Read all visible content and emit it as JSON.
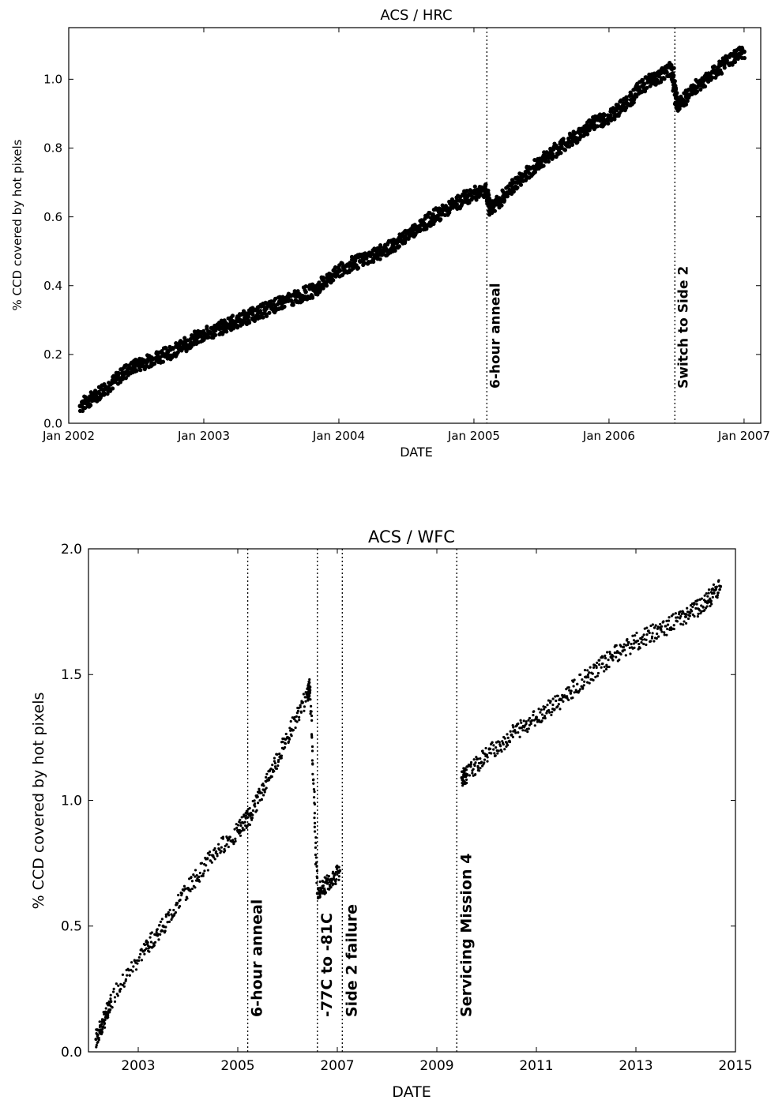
{
  "chart_data": [
    {
      "type": "scatter",
      "title": "ACS / HRC",
      "xlabel": "DATE",
      "ylabel": "% CCD covered by hot pixels",
      "xlim": [
        "2002-01-01",
        "2007-02-15"
      ],
      "ylim": [
        0.0,
        1.15
      ],
      "xtick_labels": [
        "Jan 2002",
        "Jan 2003",
        "Jan 2004",
        "Jan 2005",
        "Jan 2006",
        "Jan 2007"
      ],
      "xticks": [
        "2002-01-01",
        "2003-01-01",
        "2004-01-01",
        "2005-01-01",
        "2006-01-01",
        "2007-01-01"
      ],
      "ytick_labels": [
        "0.0",
        "0.2",
        "0.4",
        "0.6",
        "0.8",
        "1.0"
      ],
      "yticks": [
        0.0,
        0.2,
        0.4,
        0.6,
        0.8,
        1.0
      ],
      "grid": false,
      "marker_color": "#000000",
      "events": [
        {
          "date": "2005-02-05",
          "label": "6-hour anneal"
        },
        {
          "date": "2006-06-28",
          "label": "Switch to Side 2"
        }
      ],
      "series": [
        {
          "x": [
            "2002-02-01",
            "2002-03-15",
            "2002-05-01",
            "2002-06-15",
            "2002-08-01",
            "2002-09-15",
            "2002-11-01",
            "2002-12-15",
            "2003-02-01",
            "2003-03-15",
            "2003-05-01",
            "2003-06-15",
            "2003-08-01",
            "2003-09-15",
            "2003-11-01",
            "2003-12-15",
            "2004-02-01",
            "2004-03-15",
            "2004-05-01",
            "2004-06-15",
            "2004-08-01",
            "2004-09-15",
            "2004-11-01",
            "2004-12-15",
            "2005-02-01",
            "2005-02-15",
            "2005-04-01",
            "2005-05-15",
            "2005-07-01",
            "2005-08-15",
            "2005-10-01",
            "2005-11-15",
            "2006-01-01",
            "2006-02-15",
            "2006-04-01",
            "2006-05-15",
            "2006-06-20",
            "2006-07-05",
            "2006-08-15",
            "2006-10-01",
            "2006-11-15",
            "2007-01-01"
          ],
          "y": [
            0.05,
            0.08,
            0.12,
            0.16,
            0.18,
            0.2,
            0.22,
            0.25,
            0.27,
            0.29,
            0.31,
            0.33,
            0.35,
            0.37,
            0.39,
            0.43,
            0.46,
            0.48,
            0.5,
            0.53,
            0.57,
            0.6,
            0.63,
            0.66,
            0.68,
            0.62,
            0.67,
            0.72,
            0.76,
            0.8,
            0.83,
            0.87,
            0.89,
            0.93,
            0.98,
            1.01,
            1.03,
            0.92,
            0.97,
            1.01,
            1.05,
            1.08
          ]
        }
      ]
    },
    {
      "type": "scatter",
      "title": "ACS / WFC",
      "xlabel": "DATE",
      "ylabel": "% CCD covered by hot pixels",
      "xlim": [
        2002.0,
        2015.0
      ],
      "ylim": [
        0.0,
        2.0
      ],
      "xtick_labels": [
        "2003",
        "2005",
        "2007",
        "2009",
        "2011",
        "2013",
        "2015"
      ],
      "xticks": [
        2003,
        2005,
        2007,
        2009,
        2011,
        2013,
        2015
      ],
      "ytick_labels": [
        "0.0",
        "0.5",
        "1.0",
        "1.5",
        "2.0"
      ],
      "yticks": [
        0.0,
        0.5,
        1.0,
        1.5,
        2.0
      ],
      "grid": false,
      "marker_color": "#000000",
      "events": [
        {
          "date": 2005.2,
          "label": "6-hour anneal"
        },
        {
          "date": 2006.6,
          "label": "-77C to -81C"
        },
        {
          "date": 2007.1,
          "label": "Side 2 failure"
        },
        {
          "date": 2009.4,
          "label": "Servicing Mission 4"
        }
      ],
      "series": [
        {
          "x": [
            2002.15,
            2002.3,
            2002.45,
            2003.1,
            2003.5,
            2004.0,
            2004.5,
            2005.0,
            2005.25,
            2005.6,
            2006.0,
            2006.4,
            2006.45,
            2006.6,
            2006.8,
            2007.05,
            2009.5,
            2009.6,
            2010.0,
            2010.5,
            2011.0,
            2011.5,
            2012.0,
            2012.5,
            2013.0,
            2013.5,
            2014.0,
            2014.4,
            2014.7
          ],
          "y": [
            0.05,
            0.12,
            0.2,
            0.4,
            0.5,
            0.65,
            0.78,
            0.88,
            0.94,
            1.08,
            1.25,
            1.42,
            1.45,
            0.63,
            0.67,
            0.72,
            1.09,
            1.1,
            1.18,
            1.26,
            1.33,
            1.4,
            1.49,
            1.57,
            1.63,
            1.68,
            1.73,
            1.79,
            1.85
          ]
        }
      ]
    }
  ]
}
